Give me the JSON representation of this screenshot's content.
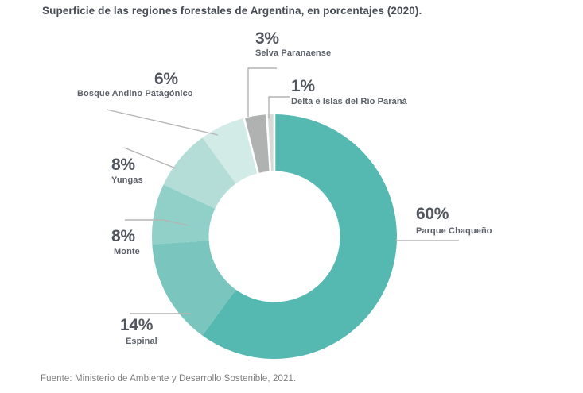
{
  "chart_data": {
    "type": "pie",
    "donut": true,
    "title": "Superficie de las regiones forestales de Argentina, en porcentajes (2020).",
    "source": "Fuente: Ministerio de Ambiente y Desarrollo Sostenible, 2021.",
    "start_angle_deg": 0,
    "direction": "clockwise",
    "legend_position": "callout-labels",
    "slices": [
      {
        "name": "Parque Chaqueño",
        "value": 60,
        "pct_label": "60%",
        "color": "#55b8b1"
      },
      {
        "name": "Espinal",
        "value": 14,
        "pct_label": "14%",
        "color": "#7ac6be"
      },
      {
        "name": "Monte",
        "value": 8,
        "pct_label": "8%",
        "color": "#90d0c8"
      },
      {
        "name": "Yungas",
        "value": 8,
        "pct_label": "8%",
        "color": "#b4ddd8"
      },
      {
        "name": "Bosque Andino Patagónico",
        "value": 6,
        "pct_label": "6%",
        "color": "#d2ebe7"
      },
      {
        "name": "Selva Paranaense",
        "value": 3,
        "pct_label": "3%",
        "color": "#b0b2b2"
      },
      {
        "name": "Delta e Islas del Río Paraná",
        "value": 1,
        "pct_label": "1%",
        "color": "#d8dada"
      }
    ],
    "colors": {
      "label_text": "#51565f",
      "leader_line": "#b4b4b4",
      "separator": "#ffffff"
    }
  }
}
